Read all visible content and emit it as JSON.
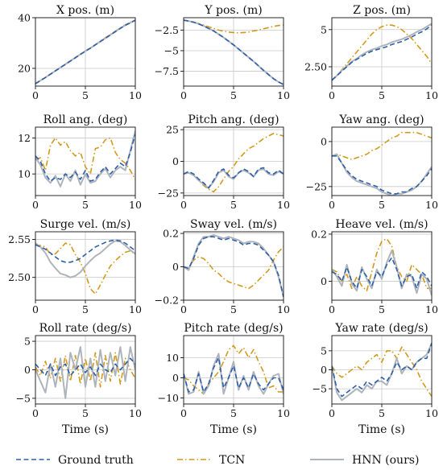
{
  "chart_data": {
    "type": "line",
    "legend": {
      "placement": "bottom",
      "entries": [
        {
          "label": "Ground truth",
          "color": "#2f5fa8",
          "style": "dashed"
        },
        {
          "label": "TCN",
          "color": "#d19a1c",
          "style": "dashdot"
        },
        {
          "label": "HNN (ours)",
          "color": "#aeb4bb",
          "style": "solid"
        }
      ]
    },
    "x_label": "Time (s)",
    "x": [
      0,
      0.5,
      1,
      1.5,
      2,
      2.5,
      3,
      3.5,
      4,
      4.5,
      5,
      5.5,
      6,
      6.5,
      7,
      7.5,
      8,
      8.5,
      9,
      9.5,
      10
    ],
    "grid": true,
    "panels": [
      {
        "title": "X pos. (m)",
        "xlim": [
          0,
          10
        ],
        "ylim": [
          13,
          40
        ],
        "yticks": [
          20,
          40
        ],
        "xticks": [
          0,
          5,
          10
        ],
        "series": {
          "Ground truth": [
            14,
            15.2,
            16.4,
            17.7,
            19,
            20.3,
            21.6,
            22.9,
            24.2,
            25.5,
            26.8,
            28,
            29.3,
            30.6,
            31.9,
            33.2,
            34.5,
            35.8,
            37,
            38,
            39
          ],
          "TCN": [
            14,
            15.2,
            16.5,
            17.8,
            19.1,
            20.4,
            21.7,
            23,
            24.3,
            25.6,
            26.9,
            28.1,
            29.4,
            30.8,
            32.1,
            33.4,
            34.7,
            36,
            37.2,
            38.2,
            39
          ],
          "HNN (ours)": [
            14,
            15.2,
            16.4,
            17.7,
            19,
            20.3,
            21.6,
            22.9,
            24.2,
            25.5,
            26.8,
            28,
            29.3,
            30.6,
            31.9,
            33.2,
            34.5,
            35.8,
            37,
            38,
            39
          ]
        }
      },
      {
        "title": "Y pos. (m)",
        "xlim": [
          0,
          10
        ],
        "ylim": [
          -9.3,
          -1
        ],
        "yticks": [
          -2.5,
          -5.0,
          -7.5
        ],
        "xticks": [
          0,
          5,
          10
        ],
        "series": {
          "Ground truth": [
            -1.3,
            -1.4,
            -1.55,
            -1.75,
            -2.0,
            -2.3,
            -2.6,
            -3.0,
            -3.4,
            -3.85,
            -4.3,
            -4.8,
            -5.3,
            -5.8,
            -6.3,
            -6.85,
            -7.4,
            -7.9,
            -8.4,
            -8.8,
            -9.1
          ],
          "TCN": [
            -1.3,
            -1.4,
            -1.55,
            -1.7,
            -1.9,
            -2.1,
            -2.3,
            -2.5,
            -2.65,
            -2.75,
            -2.8,
            -2.85,
            -2.8,
            -2.75,
            -2.6,
            -2.5,
            -2.35,
            -2.2,
            -2.05,
            -1.95,
            -1.9
          ],
          "HNN (ours)": [
            -1.3,
            -1.4,
            -1.55,
            -1.75,
            -2.0,
            -2.3,
            -2.6,
            -3.0,
            -3.4,
            -3.85,
            -4.3,
            -4.8,
            -5.3,
            -5.8,
            -6.3,
            -6.85,
            -7.4,
            -7.9,
            -8.4,
            -8.8,
            -9.1
          ]
        }
      },
      {
        "title": "Z pos. (m)",
        "xlim": [
          0,
          10
        ],
        "ylim": [
          1.2,
          5.8
        ],
        "yticks": [
          2.5,
          5.0
        ],
        "xticks": [
          0,
          5,
          10
        ],
        "series": {
          "Ground truth": [
            1.6,
            1.9,
            2.2,
            2.5,
            2.8,
            3.0,
            3.2,
            3.4,
            3.55,
            3.65,
            3.75,
            3.85,
            4.0,
            4.1,
            4.2,
            4.35,
            4.5,
            4.7,
            4.85,
            5.05,
            5.3
          ],
          "TCN": [
            1.6,
            1.9,
            2.3,
            2.7,
            3.1,
            3.5,
            3.9,
            4.3,
            4.7,
            5.0,
            5.2,
            5.3,
            5.3,
            5.2,
            5.0,
            4.7,
            4.4,
            4.0,
            3.6,
            3.2,
            2.7
          ],
          "HNN (ours)": [
            1.6,
            1.9,
            2.25,
            2.55,
            2.85,
            3.05,
            3.3,
            3.5,
            3.65,
            3.75,
            3.9,
            4.0,
            4.15,
            4.25,
            4.35,
            4.5,
            4.65,
            4.85,
            5.0,
            5.2,
            5.4
          ]
        }
      },
      {
        "title": "Roll ang. (deg)",
        "xlim": [
          0,
          10
        ],
        "ylim": [
          8.8,
          12.6
        ],
        "yticks": [
          10,
          12
        ],
        "xticks": [
          0,
          5,
          10
        ],
        "series": {
          "Ground truth": [
            11,
            10.7,
            10.0,
            9.6,
            9.8,
            9.7,
            10.0,
            9.8,
            10.1,
            9.7,
            10.2,
            9.6,
            9.7,
            10.1,
            10.4,
            10.0,
            10.3,
            10.6,
            10.4,
            11.2,
            12.2
          ],
          "TCN": [
            10.8,
            10.9,
            10.2,
            11.6,
            12.0,
            11.6,
            11.8,
            11.3,
            11.0,
            11.2,
            10.4,
            10.0,
            11.4,
            11.5,
            11.9,
            12.0,
            11.2,
            10.8,
            10.6,
            10.2,
            9.7
          ],
          "HNN (ours)": [
            10.9,
            10.5,
            9.8,
            9.5,
            9.9,
            9.3,
            10.0,
            9.6,
            10.2,
            9.4,
            10.0,
            9.5,
            9.6,
            10.0,
            10.3,
            9.8,
            10.2,
            10.4,
            10.2,
            11.3,
            12.4
          ]
        }
      },
      {
        "title": "Pitch ang. (deg)",
        "xlim": [
          0,
          10
        ],
        "ylim": [
          -27,
          27
        ],
        "yticks": [
          25,
          0,
          -25
        ],
        "xticks": [
          0,
          5,
          10
        ],
        "series": {
          "Ground truth": [
            -10,
            -8,
            -10,
            -14,
            -17,
            -21,
            -15,
            -8,
            -6,
            -11,
            -13,
            -9,
            -6,
            -8,
            -12,
            -6,
            -5,
            -9,
            -10,
            -7,
            -10
          ],
          "TCN": [
            -10,
            -9,
            -11,
            -15,
            -19,
            -22,
            -24,
            -20,
            -14,
            -8,
            -4,
            2,
            6,
            10,
            12,
            15,
            18,
            20,
            22,
            21,
            20
          ],
          "HNN (ours)": [
            -10,
            -9,
            -11,
            -15,
            -18,
            -21,
            -16,
            -9,
            -7,
            -12,
            -14,
            -9,
            -7,
            -9,
            -12,
            -7,
            -6,
            -10,
            -11,
            -8,
            -10
          ]
        }
      },
      {
        "title": "Yaw ang. (deg)",
        "xlim": [
          0,
          10
        ],
        "ylim": [
          -30,
          8
        ],
        "yticks": [
          0,
          -25
        ],
        "xticks": [
          0,
          5,
          10
        ],
        "series": {
          "Ground truth": [
            -8,
            -8,
            -12,
            -16,
            -19,
            -21,
            -22,
            -23,
            -24,
            -25,
            -27,
            -28,
            -29,
            -29,
            -28,
            -28,
            -26,
            -25,
            -22,
            -19,
            -15
          ],
          "TCN": [
            -8,
            -7,
            -8,
            -9,
            -10,
            -9,
            -8,
            -7,
            -5,
            -4,
            -2,
            0,
            2,
            3,
            5,
            5,
            5,
            5,
            4,
            3,
            2
          ],
          "HNN (ours)": [
            -8,
            -7,
            -12,
            -17,
            -20,
            -22,
            -23,
            -24,
            -25,
            -26,
            -28,
            -29,
            -30,
            -29,
            -29,
            -28,
            -27,
            -25,
            -22,
            -18,
            -14
          ]
        }
      },
      {
        "title": "Surge vel. (m/s)",
        "xlim": [
          0,
          10
        ],
        "ylim": [
          2.47,
          2.56
        ],
        "yticks": [
          2.55,
          2.5
        ],
        "xticks": [
          0,
          5,
          10
        ],
        "series": {
          "Ground truth": [
            2.543,
            2.54,
            2.537,
            2.532,
            2.527,
            2.522,
            2.52,
            2.52,
            2.522,
            2.525,
            2.53,
            2.535,
            2.54,
            2.543,
            2.546,
            2.548,
            2.549,
            2.548,
            2.545,
            2.54,
            2.535
          ],
          "TCN": [
            2.543,
            2.542,
            2.54,
            2.53,
            2.531,
            2.538,
            2.545,
            2.543,
            2.53,
            2.52,
            2.505,
            2.485,
            2.478,
            2.49,
            2.503,
            2.515,
            2.522,
            2.528,
            2.533,
            2.535,
            2.53
          ],
          "HNN (ours)": [
            2.545,
            2.54,
            2.532,
            2.52,
            2.512,
            2.505,
            2.503,
            2.5,
            2.502,
            2.507,
            2.515,
            2.522,
            2.528,
            2.532,
            2.538,
            2.544,
            2.548,
            2.547,
            2.542,
            2.536,
            2.531
          ]
        }
      },
      {
        "title": "Sway vel. (m/s)",
        "xlim": [
          0,
          10
        ],
        "ylim": [
          -0.2,
          0.21
        ],
        "yticks": [
          0.2,
          0.0,
          -0.2
        ],
        "xticks": [
          0,
          5,
          10
        ],
        "series": {
          "Ground truth": [
            0.0,
            -0.01,
            0.05,
            0.13,
            0.17,
            0.18,
            0.18,
            0.17,
            0.16,
            0.17,
            0.16,
            0.15,
            0.13,
            0.14,
            0.14,
            0.13,
            0.1,
            0.07,
            0.03,
            -0.05,
            -0.18
          ],
          "TCN": [
            0.0,
            -0.01,
            0.04,
            0.06,
            0.05,
            0.02,
            -0.02,
            -0.04,
            -0.07,
            -0.09,
            -0.1,
            -0.11,
            -0.12,
            -0.13,
            -0.11,
            -0.08,
            -0.05,
            -0.02,
            0.04,
            0.09,
            0.12
          ],
          "HNN (ours)": [
            0.0,
            -0.02,
            0.06,
            0.14,
            0.18,
            0.18,
            0.19,
            0.18,
            0.17,
            0.18,
            0.17,
            0.16,
            0.14,
            0.15,
            0.15,
            0.14,
            0.11,
            0.07,
            0.03,
            -0.06,
            -0.18
          ]
        }
      },
      {
        "title": "Heave vel. (m/s)",
        "xlim": [
          0,
          10
        ],
        "ylim": [
          -0.08,
          0.21
        ],
        "yticks": [
          0.2,
          0.0
        ],
        "xticks": [
          0,
          5,
          10
        ],
        "series": {
          "Ground truth": [
            0.04,
            0.03,
            0.0,
            0.06,
            0.0,
            -0.03,
            0.05,
            0.02,
            -0.02,
            0.04,
            0.02,
            0.07,
            0.1,
            0.05,
            -0.02,
            0.02,
            0.03,
            -0.03,
            0.04,
            0.02,
            -0.02
          ],
          "TCN": [
            0.05,
            0.04,
            0.0,
            0.03,
            -0.03,
            0.02,
            -0.02,
            -0.04,
            0.04,
            0.12,
            0.17,
            0.18,
            0.15,
            0.06,
            0.02,
            0.0,
            0.07,
            0.05,
            0.03,
            -0.03,
            -0.03
          ],
          "HNN (ours)": [
            0.05,
            0.02,
            -0.02,
            0.07,
            -0.01,
            -0.04,
            0.06,
            0.01,
            -0.03,
            0.05,
            0.01,
            0.08,
            0.13,
            0.06,
            -0.03,
            0.03,
            0.02,
            -0.05,
            0.03,
            0.01,
            -0.06
          ]
        }
      },
      {
        "title": "Roll rate (deg/s)",
        "xlim": [
          0,
          10
        ],
        "ylim": [
          -6,
          6
        ],
        "yticks": [
          5,
          0,
          -5
        ],
        "xticks": [
          0,
          5,
          10
        ],
        "series": {
          "Ground truth": [
            1,
            0,
            -1,
            1,
            -1,
            0.5,
            1,
            -1,
            0,
            1,
            -0.5,
            0.5,
            -1,
            1,
            0,
            -0.5,
            1,
            0,
            1,
            2,
            1
          ],
          "TCN": [
            0.5,
            -1,
            1.5,
            -1.5,
            2,
            -2,
            2.5,
            -2,
            2.5,
            -2.5,
            2,
            -2,
            3,
            -3,
            2.5,
            -2,
            3,
            -2.5,
            2,
            0,
            -1.5
          ],
          "HNN (ours)": [
            0,
            -2,
            -4,
            1,
            -3,
            2,
            -5,
            3,
            0,
            4,
            -3,
            2,
            -3,
            3.5,
            -2,
            3,
            -1,
            4,
            -2,
            4,
            0
          ]
        }
      },
      {
        "title": "Pitch rate (deg/s)",
        "xlim": [
          0,
          10
        ],
        "ylim": [
          -13,
          21
        ],
        "yticks": [
          10,
          0,
          -10
        ],
        "xticks": [
          0,
          5,
          10
        ],
        "series": {
          "Ground truth": [
            2,
            -7,
            -6,
            2,
            -7,
            -3,
            5,
            10,
            -5,
            0,
            6,
            -5,
            0,
            -5,
            2,
            -3,
            -6,
            -3,
            0,
            0,
            -6
          ],
          "TCN": [
            0,
            -1,
            -4,
            -6,
            -8,
            -3,
            0,
            3,
            8,
            14,
            16,
            12,
            15,
            10,
            14,
            8,
            3,
            -5,
            -4,
            -7,
            -7
          ],
          "HNN (ours)": [
            2,
            -8,
            -7,
            3,
            -8,
            -4,
            6,
            12,
            -8,
            0,
            8,
            -6,
            1,
            -6,
            3,
            -4,
            -8,
            -3,
            1,
            2,
            -8
          ]
        }
      },
      {
        "title": "Yaw rate (deg/s)",
        "xlim": [
          0,
          10
        ],
        "ylim": [
          -9,
          9
        ],
        "yticks": [
          5,
          0,
          -5
        ],
        "xticks": [
          0,
          5,
          10
        ],
        "series": {
          "Ground truth": [
            1,
            -5,
            -7,
            -6,
            -5,
            -4,
            -5,
            -3,
            -4,
            -3,
            -2,
            -3,
            -1,
            2,
            0,
            1,
            0,
            2,
            3,
            3,
            7
          ],
          "TCN": [
            1,
            -1,
            -2,
            -1,
            0,
            1,
            0,
            2,
            3,
            4,
            2,
            5,
            5,
            3,
            6,
            4,
            2,
            0,
            -3,
            -5,
            -7
          ],
          "HNN (ours)": [
            1,
            -6,
            -8,
            -7,
            -6,
            -5,
            -6,
            -4,
            -5,
            -3,
            -3,
            -4,
            -1,
            3,
            -1,
            1,
            0,
            2,
            3,
            4,
            7
          ]
        }
      }
    ]
  }
}
